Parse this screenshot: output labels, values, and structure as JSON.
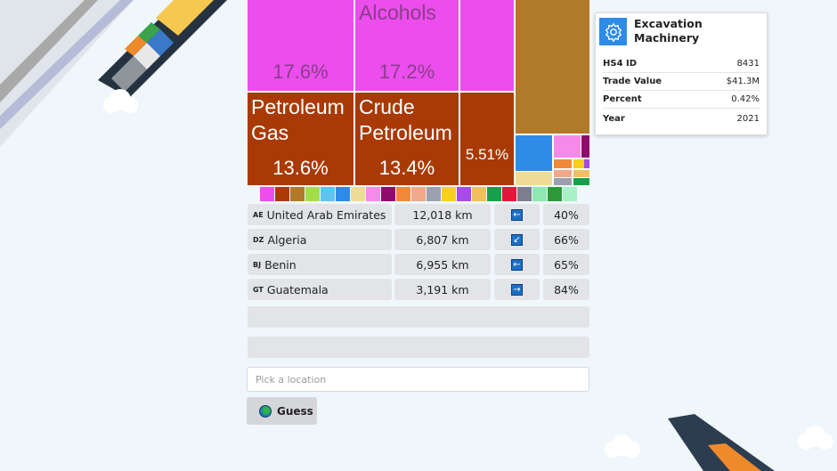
{
  "treemap": {
    "tiles": [
      {
        "label": "",
        "percent": "17.6%",
        "color": "#ec4ded"
      },
      {
        "label": "Alcohols",
        "percent": "17.2%",
        "color": "#ec4ded"
      },
      {
        "label": "Petroleum Gas",
        "percent": "13.6%",
        "color": "#a93a05"
      },
      {
        "label": "Crude Petroleum",
        "percent": "13.4%",
        "color": "#a93a05"
      },
      {
        "label": "",
        "percent": "5.51%",
        "color": "#a93a05"
      }
    ]
  },
  "tooltip": {
    "icon": "gear-icon",
    "title": "Excavation Machinery",
    "rows": [
      {
        "key": "HS4 ID",
        "value": "8431"
      },
      {
        "key": "Trade Value",
        "value": "$41.3M"
      },
      {
        "key": "Percent",
        "value": "0.42%"
      },
      {
        "key": "Year",
        "value": "2021"
      }
    ]
  },
  "legend_colors": [
    "#ec4ded",
    "#a93a05",
    "#b07a2a",
    "#a4dc4a",
    "#5fc3f0",
    "#2e8be8",
    "#f1dc96",
    "#f48be8",
    "#8e0c6e",
    "#f08a3a",
    "#f0a888",
    "#9aa0ae",
    "#f6d01a",
    "#a64ae8",
    "#f0c060",
    "#16a04a",
    "#e4163a",
    "#7d7e8e",
    "#8ee8b0",
    "#2a9a3a",
    "#a8f0c8"
  ],
  "guesses": [
    {
      "code": "AE",
      "country": "United Arab Emirates",
      "distance": "12,018 km",
      "direction": "←",
      "proximity": "40%"
    },
    {
      "code": "DZ",
      "country": "Algeria",
      "distance": "6,807 km",
      "direction": "↙",
      "proximity": "66%"
    },
    {
      "code": "BJ",
      "country": "Benin",
      "distance": "6,955 km",
      "direction": "←",
      "proximity": "65%"
    },
    {
      "code": "GT",
      "country": "Guatemala",
      "distance": "3,191 km",
      "direction": "→",
      "proximity": "84%"
    }
  ],
  "input": {
    "placeholder": "Pick a location",
    "value": ""
  },
  "guess_button": {
    "label": "Guess",
    "icon": "globe-icon"
  }
}
